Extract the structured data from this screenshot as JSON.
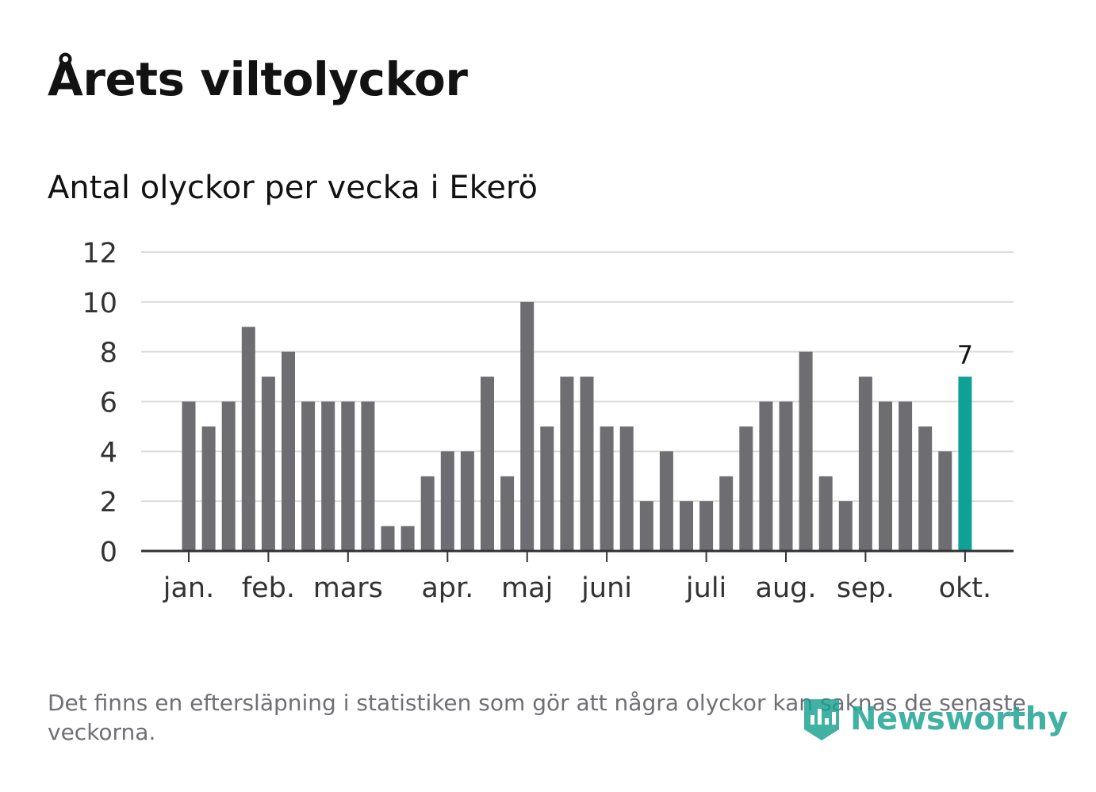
{
  "header": {
    "title": "Årets viltolyckor",
    "subtitle": "Antal olyckor per vecka i Ekerö"
  },
  "footer": {
    "note": "Det finns en eftersläpning i statistiken som gör att några olyckor kan saknas de senaste veckorna.",
    "brand": "Newsworthy"
  },
  "colors": {
    "bar": "#6e6d72",
    "highlight": "#0fa195",
    "grid": "#dcdcdc",
    "axis": "#333333",
    "tick_text": "#333333",
    "brand": "#17a090"
  },
  "chart_data": {
    "type": "bar",
    "title": "Antal olyckor per vecka i Ekerö",
    "xlabel": "",
    "ylabel": "",
    "ylim": [
      0,
      12
    ],
    "yticks": [
      0,
      2,
      4,
      6,
      8,
      10,
      12
    ],
    "grid": true,
    "values": [
      6,
      5,
      6,
      9,
      7,
      8,
      6,
      6,
      6,
      6,
      1,
      1,
      3,
      4,
      4,
      7,
      3,
      10,
      5,
      7,
      7,
      5,
      5,
      2,
      4,
      2,
      2,
      3,
      5,
      6,
      6,
      8,
      3,
      2,
      7,
      6,
      6,
      5,
      4,
      7
    ],
    "highlight_index": 39,
    "highlight_label": "7",
    "month_ticks": [
      {
        "label": "jan.",
        "week_index": 0
      },
      {
        "label": "feb.",
        "week_index": 4
      },
      {
        "label": "mars",
        "week_index": 8
      },
      {
        "label": "apr.",
        "week_index": 13
      },
      {
        "label": "maj",
        "week_index": 17
      },
      {
        "label": "juni",
        "week_index": 21
      },
      {
        "label": "juli",
        "week_index": 26
      },
      {
        "label": "aug.",
        "week_index": 30
      },
      {
        "label": "sep.",
        "week_index": 34
      },
      {
        "label": "okt.",
        "week_index": 39
      }
    ]
  }
}
